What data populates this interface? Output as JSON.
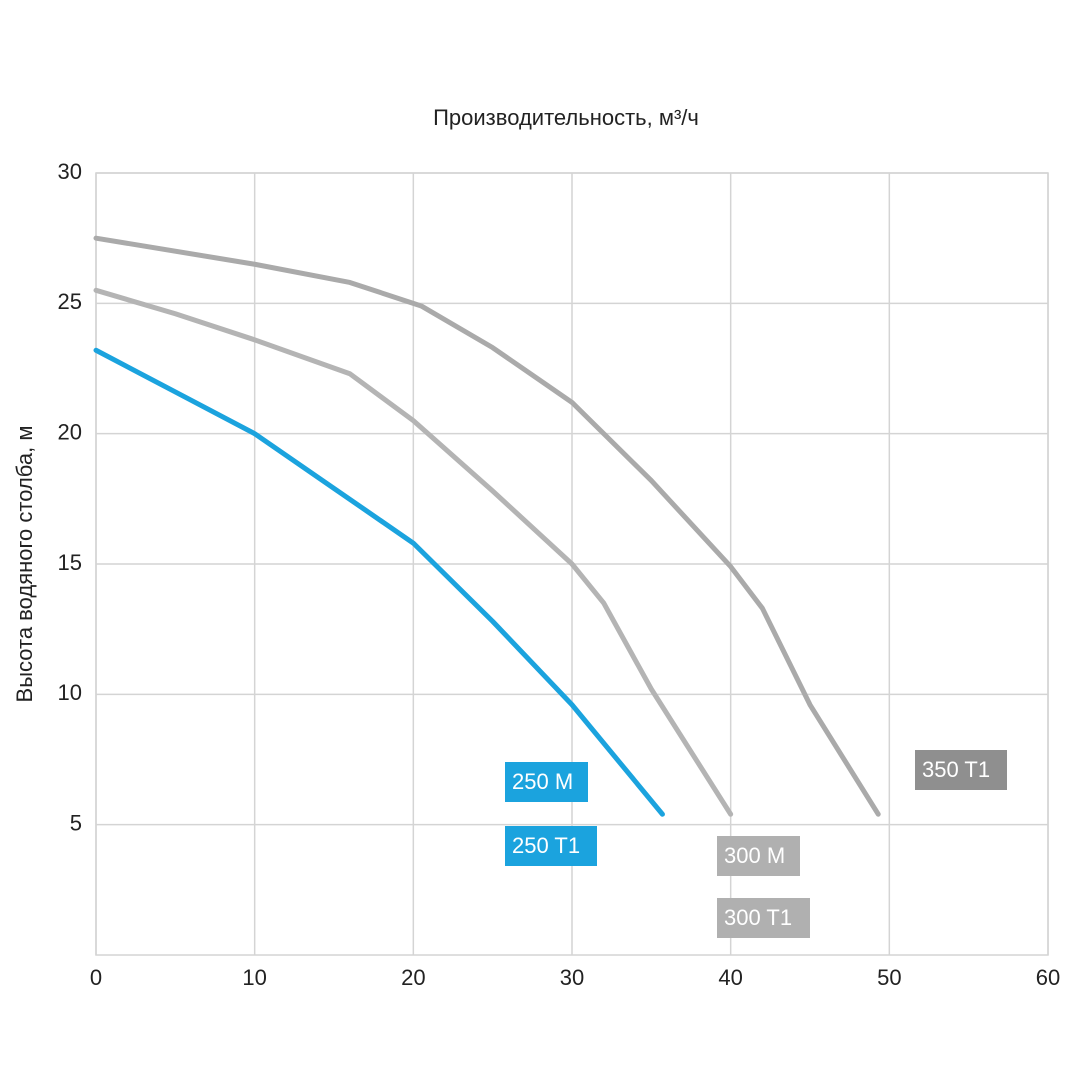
{
  "chart_data": {
    "type": "line",
    "title": "Производительность, м³/ч",
    "y_label": "Высота водяного столба, м",
    "xlim": [
      0,
      60
    ],
    "xticks": [
      0,
      10,
      20,
      30,
      40,
      50,
      60
    ],
    "ylim": [
      0,
      30
    ],
    "yticks": [
      5,
      10,
      15,
      20,
      25,
      30
    ],
    "grid": true,
    "series": [
      {
        "labels": [
          "250 M",
          "250 T1"
        ],
        "color": "#1ba3de",
        "label_color": "#1ba3de",
        "x": [
          0,
          5,
          10,
          15,
          20,
          25,
          30,
          35.7
        ],
        "values": [
          23.2,
          21.6,
          20,
          17.9,
          15.8,
          12.8,
          9.6,
          5.4
        ]
      },
      {
        "labels": [
          "300 M",
          "300 T1"
        ],
        "color": "#b4b4b4",
        "label_color": "#b0b0b0",
        "x": [
          0,
          5,
          10,
          16,
          20,
          25,
          30,
          32,
          35,
          40
        ],
        "values": [
          25.5,
          24.6,
          23.6,
          22.3,
          20.5,
          17.8,
          15,
          13.5,
          10.2,
          5.4
        ]
      },
      {
        "labels": [
          "350 T1"
        ],
        "color": "#aaaaaa",
        "label_color": "#8f8f8f",
        "x": [
          0,
          10,
          16,
          20.5,
          25,
          30,
          35,
          40,
          42,
          45,
          49.3
        ],
        "values": [
          27.5,
          26.5,
          25.8,
          24.9,
          23.3,
          21.2,
          18.2,
          14.9,
          13.3,
          9.6,
          5.4
        ]
      }
    ]
  }
}
